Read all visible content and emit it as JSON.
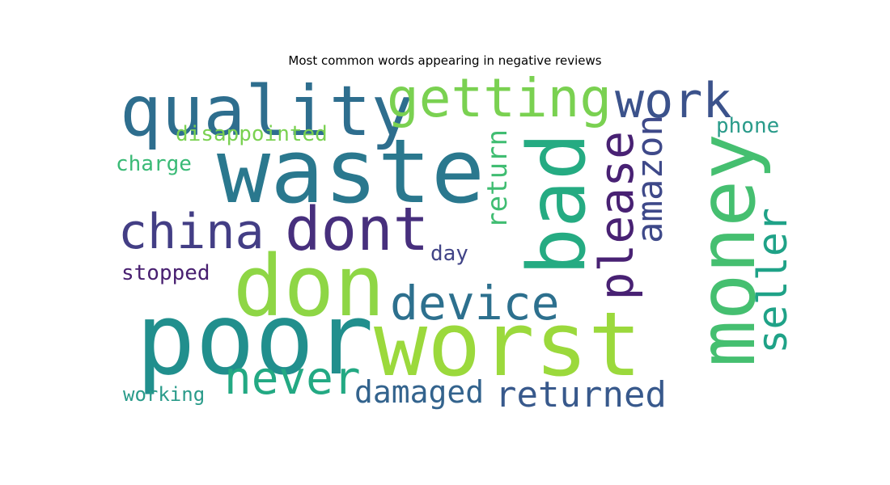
{
  "chart_data": {
    "type": "wordcloud",
    "title": "Most common words appearing in negative reviews",
    "words": [
      {
        "text": "poor",
        "color": "#218f8d",
        "orientation": "horizontal"
      },
      {
        "text": "waste",
        "color": "#2a788e",
        "orientation": "horizontal"
      },
      {
        "text": "worst",
        "color": "#9bd93c",
        "orientation": "horizontal"
      },
      {
        "text": "money",
        "color": "#45bf70",
        "orientation": "vertical"
      },
      {
        "text": "don",
        "color": "#8ed645",
        "orientation": "horizontal"
      },
      {
        "text": "quality",
        "color": "#2e6e8e",
        "orientation": "horizontal"
      },
      {
        "text": "bad",
        "color": "#25ab82",
        "orientation": "vertical"
      },
      {
        "text": "dont",
        "color": "#472f7d",
        "orientation": "horizontal"
      },
      {
        "text": "getting",
        "color": "#7ad151",
        "orientation": "horizontal"
      },
      {
        "text": "china",
        "color": "#433e85",
        "orientation": "horizontal"
      },
      {
        "text": "device",
        "color": "#2d708e",
        "orientation": "horizontal"
      },
      {
        "text": "work",
        "color": "#3b528b",
        "orientation": "horizontal"
      },
      {
        "text": "please",
        "color": "#482173",
        "orientation": "vertical"
      },
      {
        "text": "never",
        "color": "#23a983",
        "orientation": "horizontal"
      },
      {
        "text": "returned",
        "color": "#38598c",
        "orientation": "horizontal"
      },
      {
        "text": "seller",
        "color": "#1fa287",
        "orientation": "vertical"
      },
      {
        "text": "amazon",
        "color": "#3e4989",
        "orientation": "vertical"
      },
      {
        "text": "damaged",
        "color": "#33638d",
        "orientation": "horizontal"
      },
      {
        "text": "return",
        "color": "#40bd72",
        "orientation": "vertical"
      },
      {
        "text": "disappointed",
        "color": "#7ad151",
        "orientation": "horizontal"
      },
      {
        "text": "phone",
        "color": "#2a9b8a",
        "orientation": "horizontal"
      },
      {
        "text": "charge",
        "color": "#3aba76",
        "orientation": "horizontal"
      },
      {
        "text": "stopped",
        "color": "#481f70",
        "orientation": "horizontal"
      },
      {
        "text": "day",
        "color": "#414487",
        "orientation": "horizontal"
      },
      {
        "text": "working",
        "color": "#2a9b8a",
        "orientation": "horizontal"
      }
    ]
  }
}
